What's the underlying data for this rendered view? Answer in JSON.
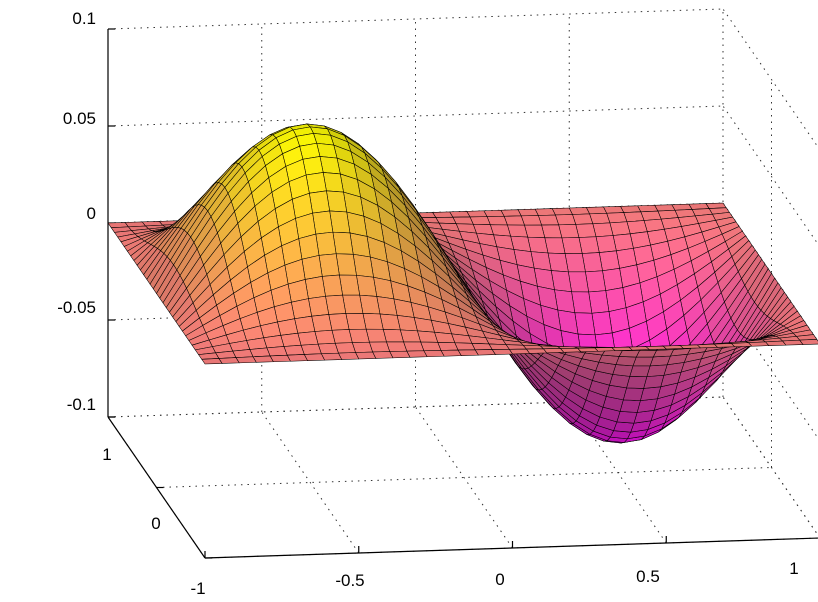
{
  "chart_data": {
    "type": "surface",
    "title": "",
    "xlabel": "",
    "ylabel": "",
    "zlabel": "",
    "xlim": [
      -1,
      1
    ],
    "ylim": [
      -1,
      1
    ],
    "zlim": [
      -0.1,
      0.1
    ],
    "grid": true,
    "colormap": "spring",
    "x_ticks": [
      "-1",
      "-0.5",
      "0",
      "0.5",
      "1"
    ],
    "y_ticks": [
      "1",
      "0"
    ],
    "z_ticks": [
      "0.1",
      "0.05",
      "0",
      "-0.05",
      "-0.1"
    ],
    "surface": {
      "function": "z = -0.0833 * sin(pi*x) * cos(pi*y/2)^2",
      "grid_size": [
        36,
        30
      ],
      "peak": {
        "x": -0.5,
        "y": 0,
        "z": 0.0833
      },
      "trough": {
        "x": 0.5,
        "y": 0,
        "z": -0.0833
      }
    }
  }
}
